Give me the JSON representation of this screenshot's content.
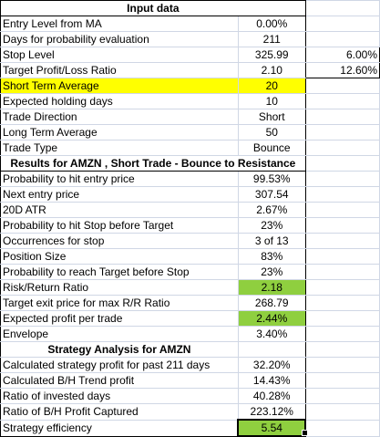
{
  "input_header": "Input data",
  "rows": [
    {
      "label": "Entry Level from MA",
      "value": "0.00%",
      "extra": ""
    },
    {
      "label": "Days for probability evaluation",
      "value": "211",
      "extra": ""
    },
    {
      "label": "Stop Level",
      "value": "325.99",
      "extra": "6.00%"
    },
    {
      "label": "Target Profit/Loss Ratio",
      "value": "2.10",
      "extra": "12.60%"
    },
    {
      "label": "Short Term Average",
      "value": "20",
      "extra": ""
    },
    {
      "label": "Expected holding days",
      "value": "10",
      "extra": ""
    },
    {
      "label": "Trade Direction",
      "value": "Short",
      "extra": ""
    },
    {
      "label": "Long Term Average",
      "value": "50",
      "extra": ""
    },
    {
      "label": "Trade Type",
      "value": "Bounce",
      "extra": ""
    }
  ],
  "results_header": "Results for AMZN , Short Trade - Bounce to Resistance",
  "results": [
    {
      "label": "Probability to hit entry price",
      "value": "99.53%"
    },
    {
      "label": "Next entry price",
      "value": "307.54"
    },
    {
      "label": "20D ATR",
      "value": "2.67%"
    },
    {
      "label": "Probability to hit Stop before Target",
      "value": "23%"
    },
    {
      "label": "Occurrences for stop",
      "value": "3 of 13"
    },
    {
      "label": "Position Size",
      "value": "83%"
    },
    {
      "label": "Probability to reach Target before Stop",
      "value": "23%"
    },
    {
      "label": "Risk/Return Ratio",
      "value": "2.18"
    },
    {
      "label": "Target exit price for max R/R Ratio",
      "value": "268.79"
    },
    {
      "label": "Expected profit per trade",
      "value": "2.44%"
    },
    {
      "label": "Envelope",
      "value": "3.40%"
    }
  ],
  "strategy_header": "Strategy Analysis for AMZN",
  "strategy": [
    {
      "label": "Calculated strategy profit for past 211 days",
      "value": "32.20%"
    },
    {
      "label": "Calculated B/H Trend profit",
      "value": "14.43%"
    },
    {
      "label": "Ratio of invested days",
      "value": "40.28%"
    },
    {
      "label": "Ratio of B/H Profit Captured",
      "value": "223.12%"
    },
    {
      "label": "Strategy efficiency",
      "value": "5.54"
    }
  ],
  "colors": {
    "highlight_yellow": "#ffff00",
    "highlight_green": "#8fcf3f",
    "gridline": "#d0d7e5"
  }
}
